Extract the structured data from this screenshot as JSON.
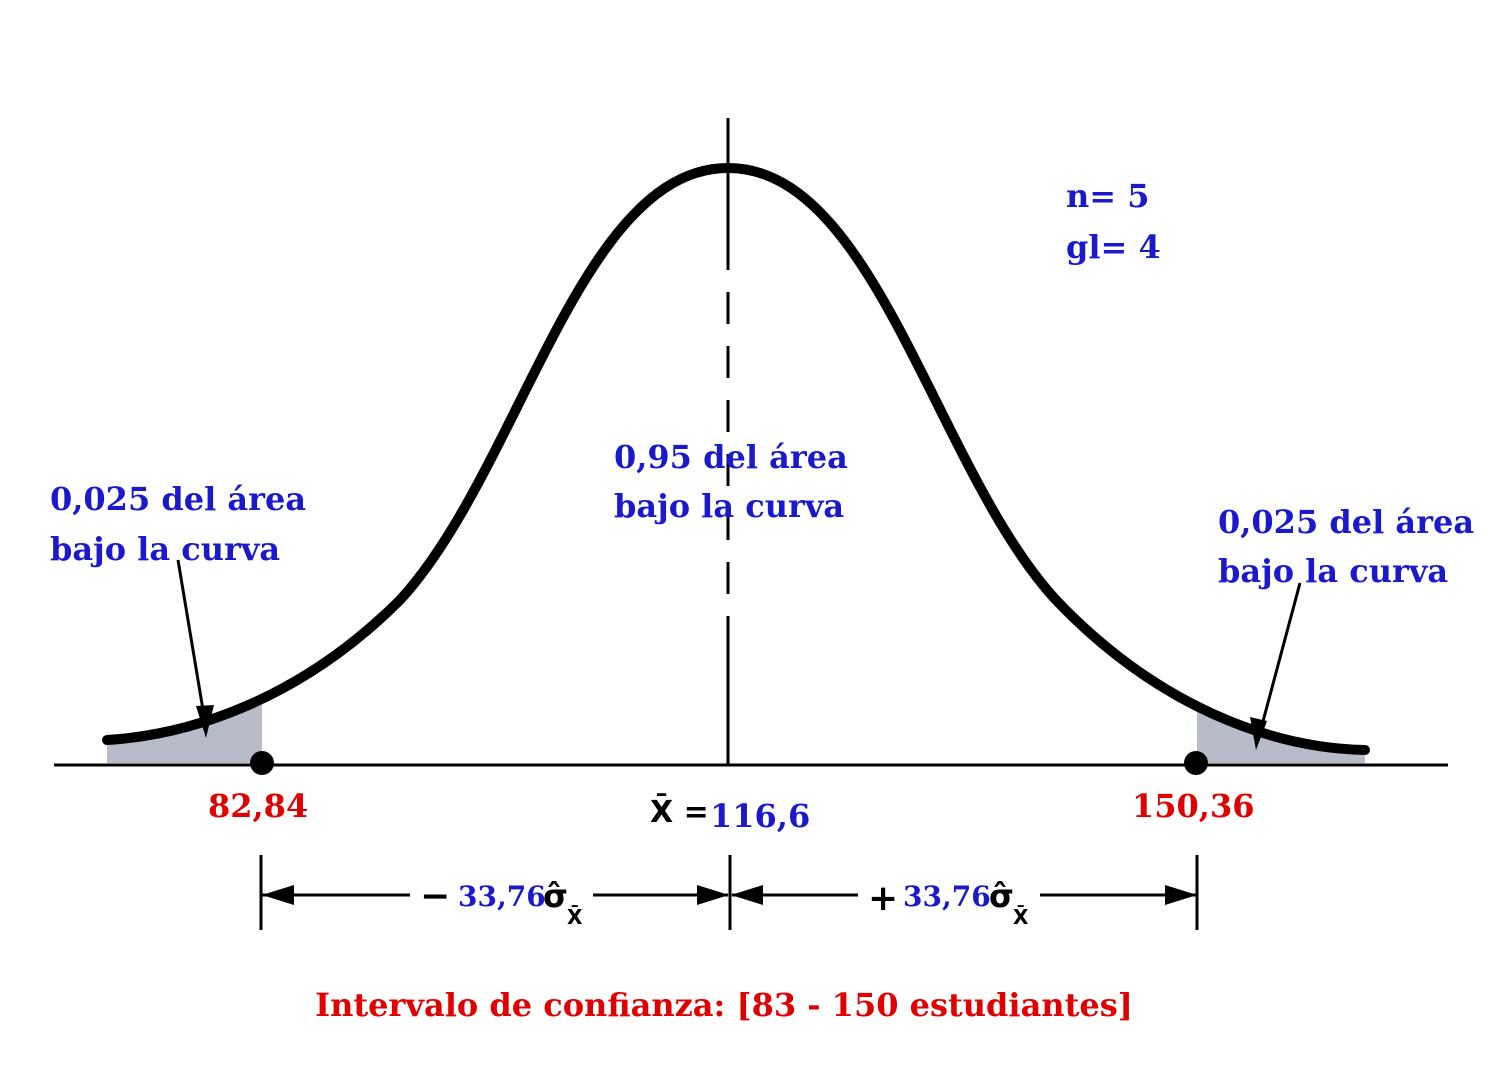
{
  "sample": {
    "n_label": "n= 5",
    "gl_label": "gl= 4"
  },
  "center_area": {
    "line1": "0,95 del área",
    "line2": "bajo la curva"
  },
  "left_tail": {
    "line1": "0,025 del área",
    "line2": "bajo la curva"
  },
  "right_tail": {
    "line1": "0,025 del área",
    "line2": "bajo la curva"
  },
  "axis": {
    "lower_limit": "82,84",
    "mean_symbol": "X̄ =",
    "mean_value": "116,6",
    "upper_limit": "150,36"
  },
  "margins": {
    "minus_sign": "−",
    "minus_value": "33,76",
    "plus_sign": "+",
    "plus_value": "33,76",
    "sigma_symbol": "σ̂",
    "sigma_subscript": "X̄"
  },
  "interval_text": "Intervalo de confianza: [83 - 150 estudiantes]",
  "colors": {
    "blue": "#1a1acc",
    "red": "#e00000",
    "black": "#000000",
    "tail_fill": "#b8bcc8"
  }
}
